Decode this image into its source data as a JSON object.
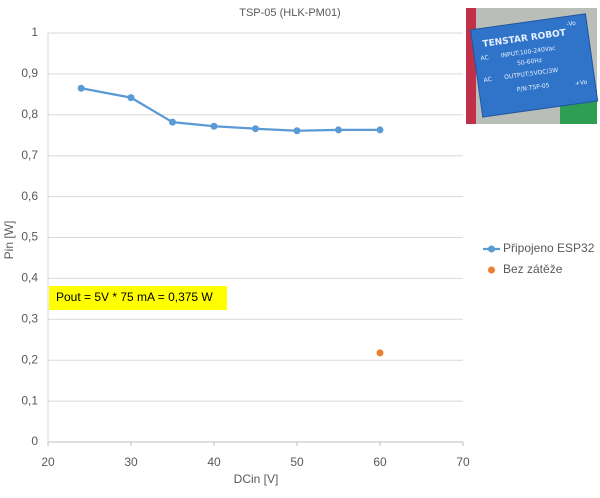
{
  "chart_data": {
    "type": "line",
    "title": "TSP-05 (HLK-PM01)",
    "xlabel": "DCin [V]",
    "ylabel": "Pin [W]",
    "xlim": [
      20,
      70
    ],
    "xticks": [
      20,
      30,
      40,
      50,
      60,
      70
    ],
    "ylim": [
      0,
      1
    ],
    "yticks": [
      0,
      {
        "value": 0.1,
        "label": "0,1"
      },
      {
        "value": 0.2,
        "label": "0,2"
      },
      {
        "value": 0.3,
        "label": "0,3"
      },
      {
        "value": 0.4,
        "label": "0,4"
      },
      {
        "value": 0.5,
        "label": "0,5"
      },
      {
        "value": 0.6,
        "label": "0,6"
      },
      {
        "value": 0.7,
        "label": "0,7"
      },
      {
        "value": 0.8,
        "label": "0,8"
      },
      {
        "value": 0.9,
        "label": "0,9"
      },
      1
    ],
    "grid": true,
    "legend": "right",
    "series": [
      {
        "name": "Připojeno ESP32",
        "color": "#5b9bd5",
        "x": [
          24,
          30,
          35,
          40,
          45,
          50,
          55,
          60
        ],
        "values": [
          0.865,
          0.842,
          0.782,
          0.772,
          0.766,
          0.761,
          0.763,
          0.763
        ]
      },
      {
        "name": "Bez zátěže",
        "color": "#ed7d31",
        "x": [
          60
        ],
        "values": [
          0.218
        ]
      }
    ],
    "annotation": "Pout = 5V * 75 mA = 0,375 W"
  },
  "image": {
    "brand": "TENSTAR ROBOT",
    "input": "INPUT:100-240Vac",
    "freq": "50-60Hz",
    "output": "OUTPUT:5VDC/3W",
    "part": "P/N:TSP-05",
    "ac1": "AC",
    "ac2": "AC",
    "vneg": "-Vo",
    "vpos": "+Vo"
  }
}
